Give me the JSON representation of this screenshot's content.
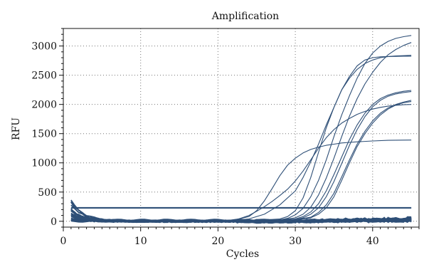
{
  "chart_data": {
    "type": "line",
    "title": "Amplification",
    "xlabel": "Cycles",
    "ylabel": "RFU",
    "xlim": [
      0,
      46
    ],
    "ylim": [
      -100,
      3300
    ],
    "xticks": [
      "0",
      "10",
      "20",
      "30",
      "40"
    ],
    "yticks": [
      "0",
      "500",
      "1000",
      "1500",
      "2000",
      "2500",
      "3000"
    ],
    "grid": true,
    "legend": "none",
    "line_color": "#2e4f77",
    "threshold": 230,
    "series": [
      {
        "x": [
          1,
          5,
          10,
          15,
          20,
          22,
          24,
          26,
          28,
          30,
          31,
          32,
          33,
          34,
          35,
          36,
          37,
          38,
          39,
          40,
          41,
          42,
          43,
          44,
          45
        ],
        "values": [
          20,
          5,
          0,
          0,
          5,
          15,
          40,
          120,
          280,
          520,
          750,
          1020,
          1320,
          1650,
          1950,
          2250,
          2480,
          2660,
          2760,
          2800,
          2815,
          2820,
          2822,
          2825,
          2825
        ]
      },
      {
        "x": [
          1,
          5,
          10,
          15,
          20,
          22,
          24,
          25,
          26,
          27,
          28,
          29,
          30,
          31,
          32,
          33,
          34,
          35,
          36,
          37,
          38,
          40,
          42,
          45
        ],
        "values": [
          30,
          10,
          5,
          5,
          10,
          20,
          80,
          180,
          350,
          560,
          780,
          960,
          1080,
          1170,
          1230,
          1270,
          1300,
          1320,
          1340,
          1350,
          1360,
          1375,
          1385,
          1390
        ]
      },
      {
        "x": [
          1,
          5,
          10,
          15,
          20,
          22,
          24,
          25,
          26,
          27,
          28,
          29,
          30,
          31,
          32,
          33,
          34,
          35,
          36,
          37,
          38,
          39,
          40,
          41,
          42,
          43,
          44,
          45
        ],
        "values": [
          25,
          10,
          0,
          -10,
          -10,
          10,
          100,
          170,
          250,
          340,
          440,
          550,
          690,
          860,
          1050,
          1250,
          1430,
          1570,
          1680,
          1760,
          1830,
          1880,
          1920,
          1950,
          1970,
          1985,
          1995,
          2000
        ]
      },
      {
        "x": [
          1,
          5,
          10,
          15,
          20,
          25,
          28,
          29,
          30,
          31,
          32,
          33,
          34,
          35,
          36,
          37,
          38,
          39,
          40,
          41,
          42,
          43,
          44,
          45
        ],
        "values": [
          20,
          5,
          0,
          0,
          5,
          15,
          40,
          80,
          180,
          400,
          750,
          1180,
          1600,
          1950,
          2250,
          2450,
          2600,
          2700,
          2760,
          2800,
          2820,
          2830,
          2835,
          2840
        ]
      },
      {
        "x": [
          1,
          5,
          10,
          15,
          20,
          25,
          28,
          29,
          30,
          31,
          32,
          33,
          34,
          35,
          36,
          37,
          38,
          39,
          40,
          41,
          42,
          43,
          44,
          45
        ],
        "values": [
          20,
          5,
          0,
          0,
          5,
          10,
          25,
          50,
          110,
          220,
          420,
          700,
          1050,
          1450,
          1820,
          2150,
          2450,
          2700,
          2880,
          3000,
          3080,
          3130,
          3160,
          3180
        ]
      },
      {
        "x": [
          1,
          5,
          10,
          15,
          20,
          25,
          28,
          30,
          31,
          32,
          33,
          34,
          35,
          36,
          37,
          38,
          39,
          40,
          41,
          42,
          43,
          44,
          45
        ],
        "values": [
          20,
          5,
          0,
          0,
          5,
          10,
          20,
          60,
          120,
          240,
          450,
          740,
          1080,
          1450,
          1800,
          2100,
          2350,
          2550,
          2720,
          2850,
          2940,
          3010,
          3060
        ]
      },
      {
        "x": [
          1,
          5,
          10,
          15,
          20,
          25,
          28,
          30,
          31,
          32,
          33,
          34,
          35,
          36,
          37,
          38,
          39,
          40,
          41,
          42,
          43,
          44,
          45
        ],
        "values": [
          15,
          5,
          0,
          0,
          0,
          5,
          15,
          40,
          80,
          160,
          300,
          520,
          800,
          1100,
          1400,
          1650,
          1850,
          2000,
          2100,
          2160,
          2200,
          2225,
          2240
        ]
      },
      {
        "x": [
          1,
          5,
          10,
          15,
          20,
          25,
          28,
          30,
          31,
          32,
          33,
          34,
          35,
          36,
          37,
          38,
          39,
          40,
          41,
          42,
          43,
          44,
          45
        ],
        "values": [
          15,
          5,
          0,
          0,
          0,
          5,
          15,
          30,
          60,
          120,
          230,
          420,
          680,
          990,
          1300,
          1570,
          1790,
          1960,
          2070,
          2140,
          2180,
          2205,
          2220
        ]
      },
      {
        "x": [
          1,
          5,
          10,
          15,
          20,
          25,
          28,
          30,
          32,
          33,
          34,
          35,
          36,
          37,
          38,
          39,
          40,
          41,
          42,
          43,
          44,
          45
        ],
        "values": [
          15,
          5,
          0,
          0,
          0,
          5,
          10,
          25,
          70,
          150,
          280,
          480,
          760,
          1050,
          1320,
          1540,
          1720,
          1850,
          1940,
          2000,
          2040,
          2070
        ]
      },
      {
        "x": [
          1,
          5,
          10,
          15,
          20,
          25,
          28,
          30,
          32,
          33,
          34,
          35,
          36,
          37,
          38,
          39,
          40,
          41,
          42,
          43,
          44,
          45
        ],
        "values": [
          15,
          5,
          0,
          0,
          0,
          5,
          10,
          20,
          60,
          120,
          230,
          420,
          700,
          1000,
          1280,
          1500,
          1680,
          1820,
          1920,
          1990,
          2030,
          2050
        ]
      }
    ]
  }
}
